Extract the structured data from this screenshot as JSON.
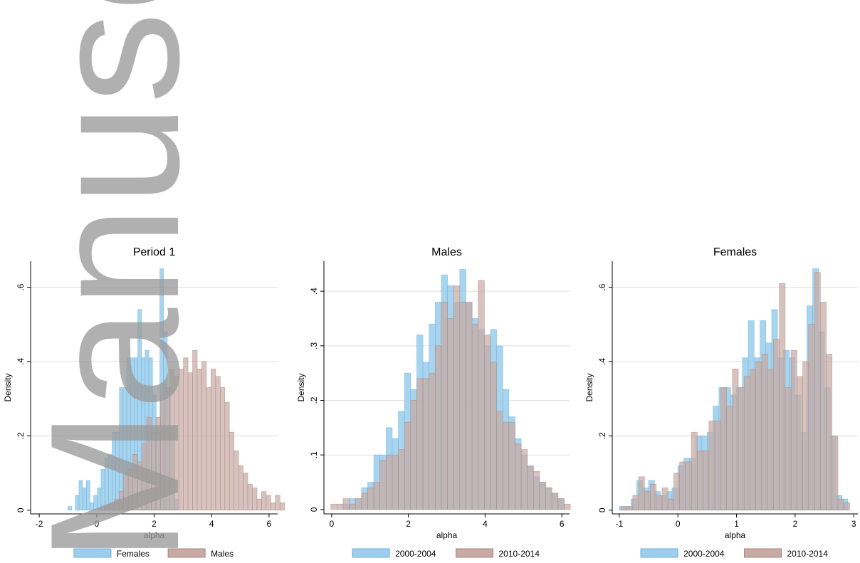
{
  "watermark": "Manuscript",
  "colors": {
    "blue_fill": "#9dcfec",
    "blue_stroke": "#6aaed8",
    "brown_fill": "#c7aaa3",
    "brown_stroke": "#a88680",
    "grid": "#dddddd",
    "watermark": "#9a9a9a"
  },
  "chart_data": [
    {
      "type": "histogram",
      "title": "Period 1",
      "xlabel": "alpha",
      "ylabel": "Density",
      "xlim": [
        -2.3,
        6.3
      ],
      "ylim": [
        -0.01,
        0.67
      ],
      "xticks": [
        -2,
        0,
        2,
        4,
        6
      ],
      "yticks": [
        0,
        0.2,
        0.4,
        0.6
      ],
      "ytick_labels": [
        "0",
        ".2",
        ".4",
        ".6"
      ],
      "legend_position": "bottom",
      "series": [
        {
          "name": "Females",
          "color": "blue",
          "x_start": -1.0,
          "bin_width": 0.128,
          "values": [
            0.01,
            0.0,
            0.04,
            0.08,
            0.06,
            0.08,
            0.02,
            0.04,
            0.06,
            0.11,
            0.14,
            0.15,
            0.21,
            0.21,
            0.33,
            0.33,
            0.41,
            0.41,
            0.41,
            0.54,
            0.41,
            0.43,
            0.41,
            0.31,
            0.21,
            0.65,
            0.48,
            0.33,
            0.21,
            0.03
          ]
        },
        {
          "name": "Males",
          "color": "brown",
          "x_start": 0.3,
          "bin_width": 0.16,
          "values": [
            0.01,
            0.02,
            0.03,
            0.05,
            0.1,
            0.11,
            0.15,
            0.13,
            0.18,
            0.25,
            0.21,
            0.25,
            0.31,
            0.33,
            0.38,
            0.36,
            0.38,
            0.41,
            0.37,
            0.43,
            0.38,
            0.4,
            0.33,
            0.38,
            0.36,
            0.33,
            0.29,
            0.21,
            0.16,
            0.12,
            0.1,
            0.07,
            0.06,
            0.03,
            0.05,
            0.04,
            0.02,
            0.04,
            0.02
          ]
        }
      ]
    },
    {
      "type": "histogram",
      "title": "Males",
      "xlabel": "alpha",
      "ylabel": "Density",
      "xlim": [
        -0.2,
        6.2
      ],
      "ylim": [
        -0.008,
        0.455
      ],
      "xticks": [
        0,
        2,
        4,
        6
      ],
      "yticks": [
        0,
        0.1,
        0.2,
        0.3,
        0.4
      ],
      "ytick_labels": [
        "0",
        ".1",
        ".2",
        ".3",
        ".4"
      ],
      "legend_position": "bottom",
      "series": [
        {
          "name": "2000-2004",
          "color": "blue",
          "x_start": 0.3,
          "bin_width": 0.16,
          "values": [
            0.01,
            0.02,
            0.02,
            0.04,
            0.05,
            0.1,
            0.1,
            0.15,
            0.13,
            0.18,
            0.25,
            0.22,
            0.32,
            0.27,
            0.34,
            0.38,
            0.43,
            0.41,
            0.38,
            0.44,
            0.38,
            0.35,
            0.33,
            0.3,
            0.33,
            0.3,
            0.22,
            0.17,
            0.13,
            0.1,
            0.08,
            0.06,
            0.05,
            0.04,
            0.03,
            0.02
          ]
        },
        {
          "name": "2010-2014",
          "color": "brown",
          "x_start": -0.02,
          "bin_width": 0.16,
          "values": [
            0.01,
            0.01,
            0.02,
            0.01,
            0.02,
            0.03,
            0.04,
            0.05,
            0.09,
            0.1,
            0.1,
            0.11,
            0.16,
            0.2,
            0.24,
            0.24,
            0.25,
            0.3,
            0.38,
            0.35,
            0.41,
            0.38,
            0.38,
            0.34,
            0.42,
            0.32,
            0.27,
            0.18,
            0.16,
            0.16,
            0.12,
            0.11,
            0.08,
            0.07,
            0.05,
            0.04,
            0.03,
            0.02,
            0.01
          ]
        }
      ]
    },
    {
      "type": "histogram",
      "title": "Females",
      "xlabel": "alpha",
      "ylabel": "Density",
      "xlim": [
        -1.12,
        3.07
      ],
      "ylim": [
        -0.01,
        0.67
      ],
      "xticks": [
        -1,
        0,
        1,
        2,
        3
      ],
      "yticks": [
        0,
        0.2,
        0.4,
        0.6
      ],
      "ytick_labels": [
        "0",
        ".2",
        ".4",
        ".6"
      ],
      "legend_position": "bottom",
      "series": [
        {
          "name": "2000-2004",
          "color": "blue",
          "x_start": -1.0,
          "bin_width": 0.1,
          "values": [
            0.01,
            0.01,
            0.03,
            0.08,
            0.06,
            0.08,
            0.05,
            0.04,
            0.05,
            0.06,
            0.12,
            0.14,
            0.14,
            0.2,
            0.2,
            0.21,
            0.28,
            0.33,
            0.33,
            0.31,
            0.33,
            0.41,
            0.51,
            0.41,
            0.51,
            0.45,
            0.54,
            0.41,
            0.43,
            0.41,
            0.31,
            0.21,
            0.55,
            0.65,
            0.48,
            0.33,
            0.2,
            0.04,
            0.03
          ]
        },
        {
          "name": "2010-2014",
          "color": "brown",
          "x_start": -0.97,
          "bin_width": 0.1,
          "values": [
            0.01,
            0.01,
            0.04,
            0.09,
            0.05,
            0.07,
            0.04,
            0.06,
            0.03,
            0.1,
            0.13,
            0.13,
            0.21,
            0.16,
            0.16,
            0.24,
            0.24,
            0.33,
            0.28,
            0.38,
            0.33,
            0.36,
            0.38,
            0.4,
            0.42,
            0.38,
            0.46,
            0.61,
            0.33,
            0.43,
            0.36,
            0.4,
            0.5,
            0.64,
            0.56,
            0.42,
            0.2,
            0.03,
            0.02
          ]
        }
      ]
    }
  ]
}
